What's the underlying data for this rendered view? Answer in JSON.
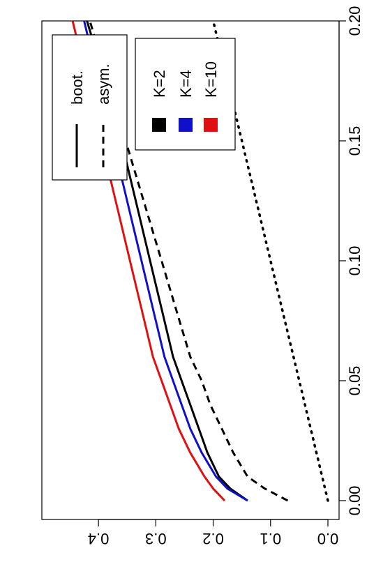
{
  "chart_data": {
    "type": "line",
    "orientation": "rotated-90-clockwise",
    "title": "",
    "xlabel": "",
    "ylabel": "",
    "xlim": [
      0.0,
      0.2
    ],
    "ylim": [
      0.0,
      0.45
    ],
    "x_ticks": [
      "0.00",
      "0.05",
      "0.10",
      "0.15",
      "0.20"
    ],
    "y_ticks": [
      "0.0",
      "0.1",
      "0.2",
      "0.3",
      "0.4"
    ],
    "grid": false,
    "series": [
      {
        "color": "#000000",
        "style": "solid",
        "group": "K=2",
        "x": [
          0.0,
          0.005,
          0.01,
          0.02,
          0.03,
          0.04,
          0.05,
          0.06,
          0.08,
          0.1,
          0.12,
          0.14,
          0.16,
          0.18,
          0.2
        ],
        "values": [
          0.14,
          0.17,
          0.19,
          0.21,
          0.225,
          0.24,
          0.255,
          0.27,
          0.29,
          0.31,
          0.33,
          0.35,
          0.37,
          0.395,
          0.42
        ]
      },
      {
        "color": "#1010cc",
        "style": "solid",
        "group": "K=4",
        "x": [
          0.0,
          0.005,
          0.01,
          0.02,
          0.03,
          0.04,
          0.05,
          0.06,
          0.08,
          0.1,
          0.12,
          0.14,
          0.16,
          0.18,
          0.2
        ],
        "values": [
          0.14,
          0.175,
          0.195,
          0.22,
          0.24,
          0.255,
          0.27,
          0.285,
          0.305,
          0.325,
          0.345,
          0.365,
          0.385,
          0.405,
          0.425
        ]
      },
      {
        "color": "#e01010",
        "style": "solid",
        "group": "K=10",
        "x": [
          0.0,
          0.005,
          0.01,
          0.02,
          0.03,
          0.04,
          0.05,
          0.06,
          0.08,
          0.1,
          0.12,
          0.14,
          0.16,
          0.18,
          0.2
        ],
        "values": [
          0.18,
          0.2,
          0.215,
          0.24,
          0.26,
          0.275,
          0.29,
          0.305,
          0.325,
          0.345,
          0.365,
          0.385,
          0.405,
          0.425,
          0.445
        ]
      },
      {
        "color": "#000000",
        "style": "dashed",
        "group": "asym.",
        "x": [
          0.0,
          0.005,
          0.01,
          0.02,
          0.03,
          0.04,
          0.05,
          0.06,
          0.08,
          0.1,
          0.12,
          0.14,
          0.16,
          0.18,
          0.2
        ],
        "values": [
          0.07,
          0.11,
          0.14,
          0.165,
          0.185,
          0.205,
          0.22,
          0.24,
          0.265,
          0.29,
          0.315,
          0.34,
          0.365,
          0.39,
          0.415
        ]
      },
      {
        "color": "#000000",
        "style": "dotted",
        "group": "",
        "x": [
          0.0,
          0.05,
          0.1,
          0.15,
          0.2
        ],
        "values": [
          0.0,
          0.05,
          0.1,
          0.15,
          0.2
        ]
      }
    ],
    "legends": [
      {
        "entries": [
          {
            "label": "boot.",
            "style": "solid"
          },
          {
            "label": "asym.",
            "style": "dashed"
          }
        ]
      },
      {
        "entries": [
          {
            "label": "K=2",
            "color": "#000000"
          },
          {
            "label": "K=4",
            "color": "#1010cc"
          },
          {
            "label": "K=10",
            "color": "#e01010"
          }
        ]
      }
    ]
  }
}
